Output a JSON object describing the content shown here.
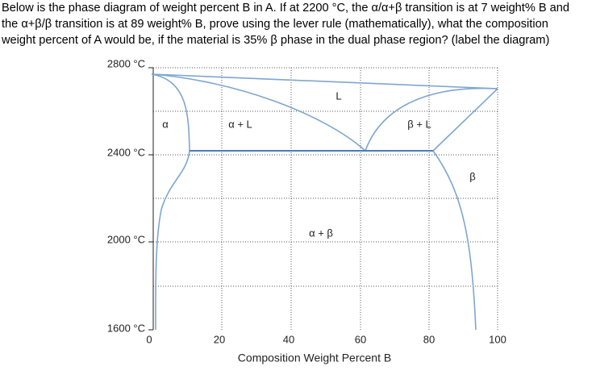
{
  "question": {
    "lines": [
      "Below is the phase diagram of weight percent B in A.  If at 2200 °C, the α/α+β transition is at 7 weight% B and",
      "the α+β/β transition is at 89 weight% B, prove using the lever rule (mathematically), what the composition",
      "weight percent of A would be, if the material is 35% β phase in the dual phase region? (label the diagram)"
    ]
  },
  "diagram": {
    "y_tick_labels": [
      "2800 °C",
      "2400 °C",
      "2000 °C",
      "1600 °C"
    ],
    "x_tick_labels": [
      "0",
      "20",
      "40",
      "60",
      "80",
      "100"
    ],
    "x_axis_label": "Composition Weight Percent B",
    "regions": [
      "α",
      "α + L",
      "L",
      "β + L",
      "β",
      "α + β"
    ]
  }
}
